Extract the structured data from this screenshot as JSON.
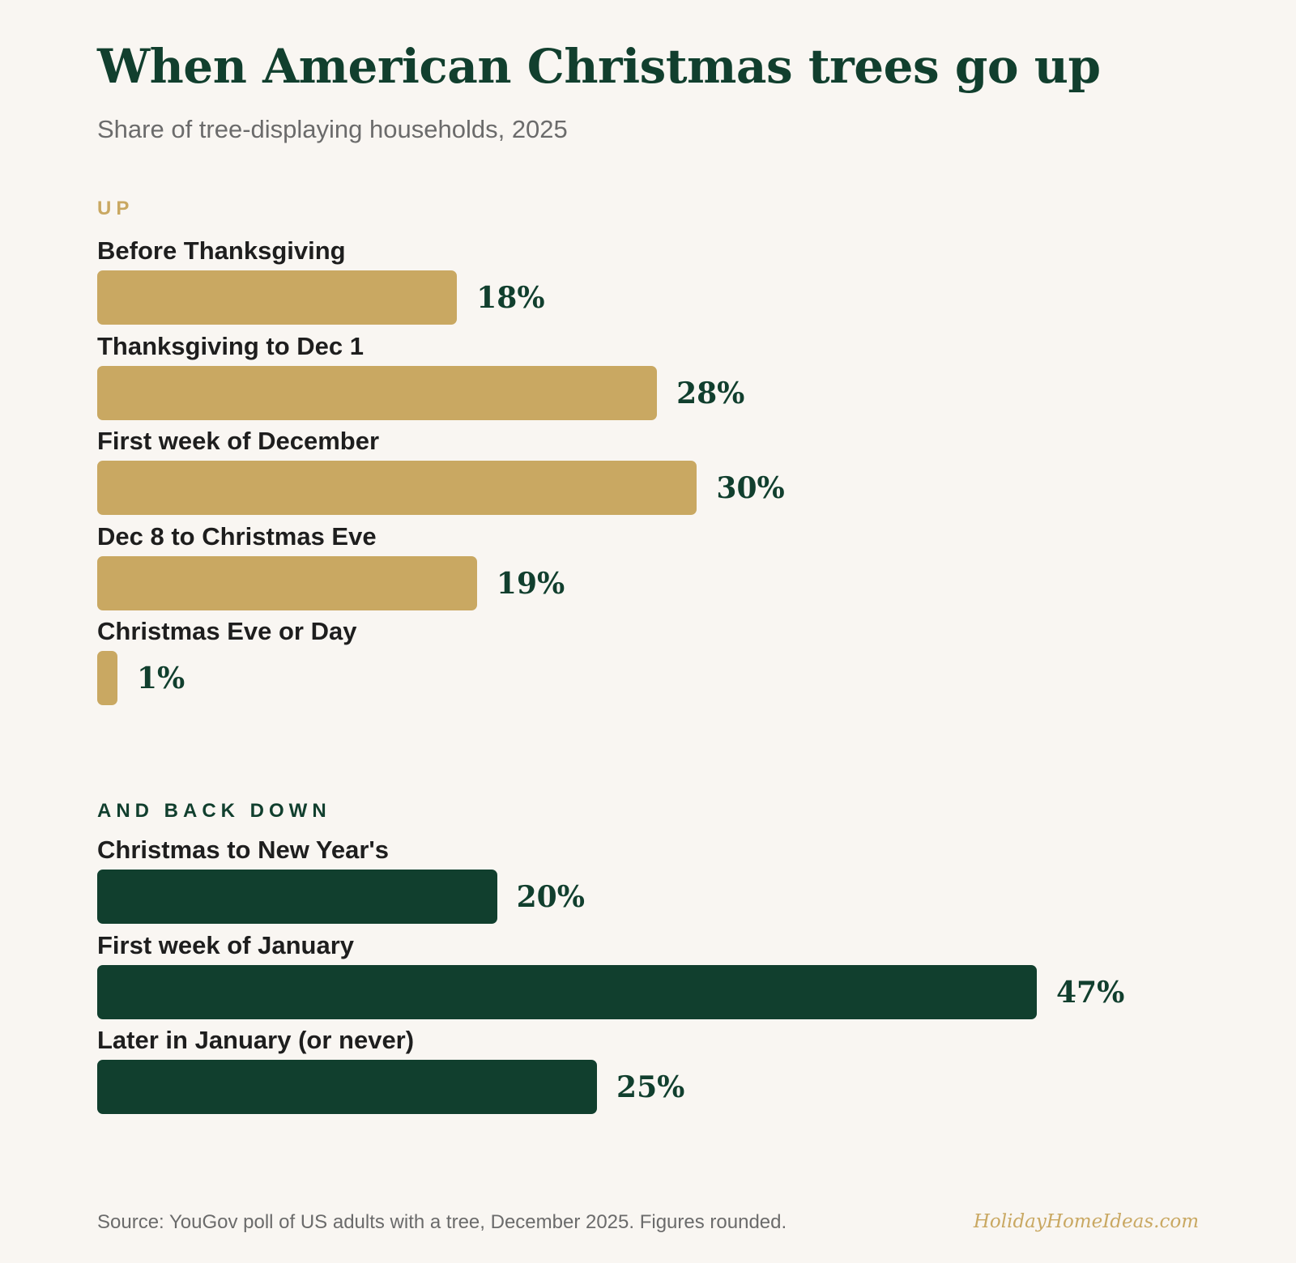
{
  "colors": {
    "gold": "#c9a862",
    "green": "#113f2e"
  },
  "chart_data": {
    "type": "bar",
    "orientation": "horizontal",
    "title": "When American Christmas trees go up",
    "subtitle": "Share of tree-displaying households, 2025",
    "unit": "%",
    "xlim": [
      0,
      47
    ],
    "grid": false,
    "groups": [
      {
        "label": "UP",
        "color": "#c9a862",
        "categories": [
          "Before Thanksgiving",
          "Thanksgiving to Dec 1",
          "First week of December",
          "Dec 8 to Christmas Eve",
          "Christmas Eve or Day"
        ],
        "values": [
          18,
          28,
          30,
          19,
          1
        ],
        "value_labels": [
          "18%",
          "28%",
          "30%",
          "19%",
          "1%"
        ]
      },
      {
        "label": "AND BACK DOWN",
        "color": "#113f2e",
        "categories": [
          "Christmas to New Year's",
          "First week of January",
          "Later in January (or never)"
        ],
        "values": [
          20,
          47,
          25
        ],
        "value_labels": [
          "20%",
          "47%",
          "25%"
        ]
      }
    ]
  },
  "footer": {
    "source": "Source: YouGov poll of US adults with a tree, December 2025. Figures rounded.",
    "brand": "HolidayHomeIdeas.com"
  }
}
